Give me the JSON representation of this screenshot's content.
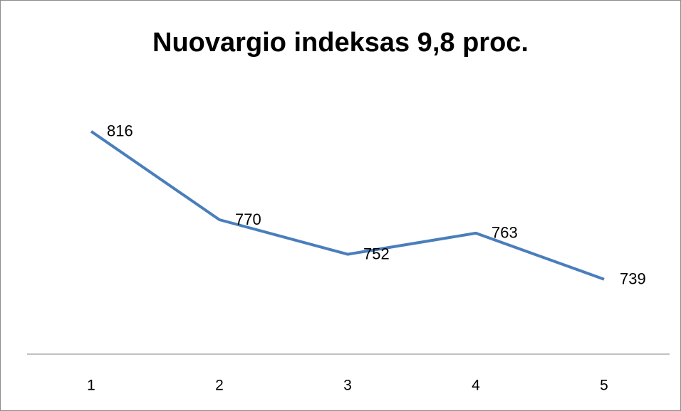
{
  "chart_data": {
    "type": "line",
    "title": "Nuovargio indeksas 9,8 proc.",
    "categories": [
      "1",
      "2",
      "3",
      "4",
      "5"
    ],
    "series": [
      {
        "color": "#4a7ebb",
        "values": [
          816,
          770,
          752,
          763,
          739
        ]
      }
    ],
    "ylim": [
      700,
      850
    ]
  }
}
